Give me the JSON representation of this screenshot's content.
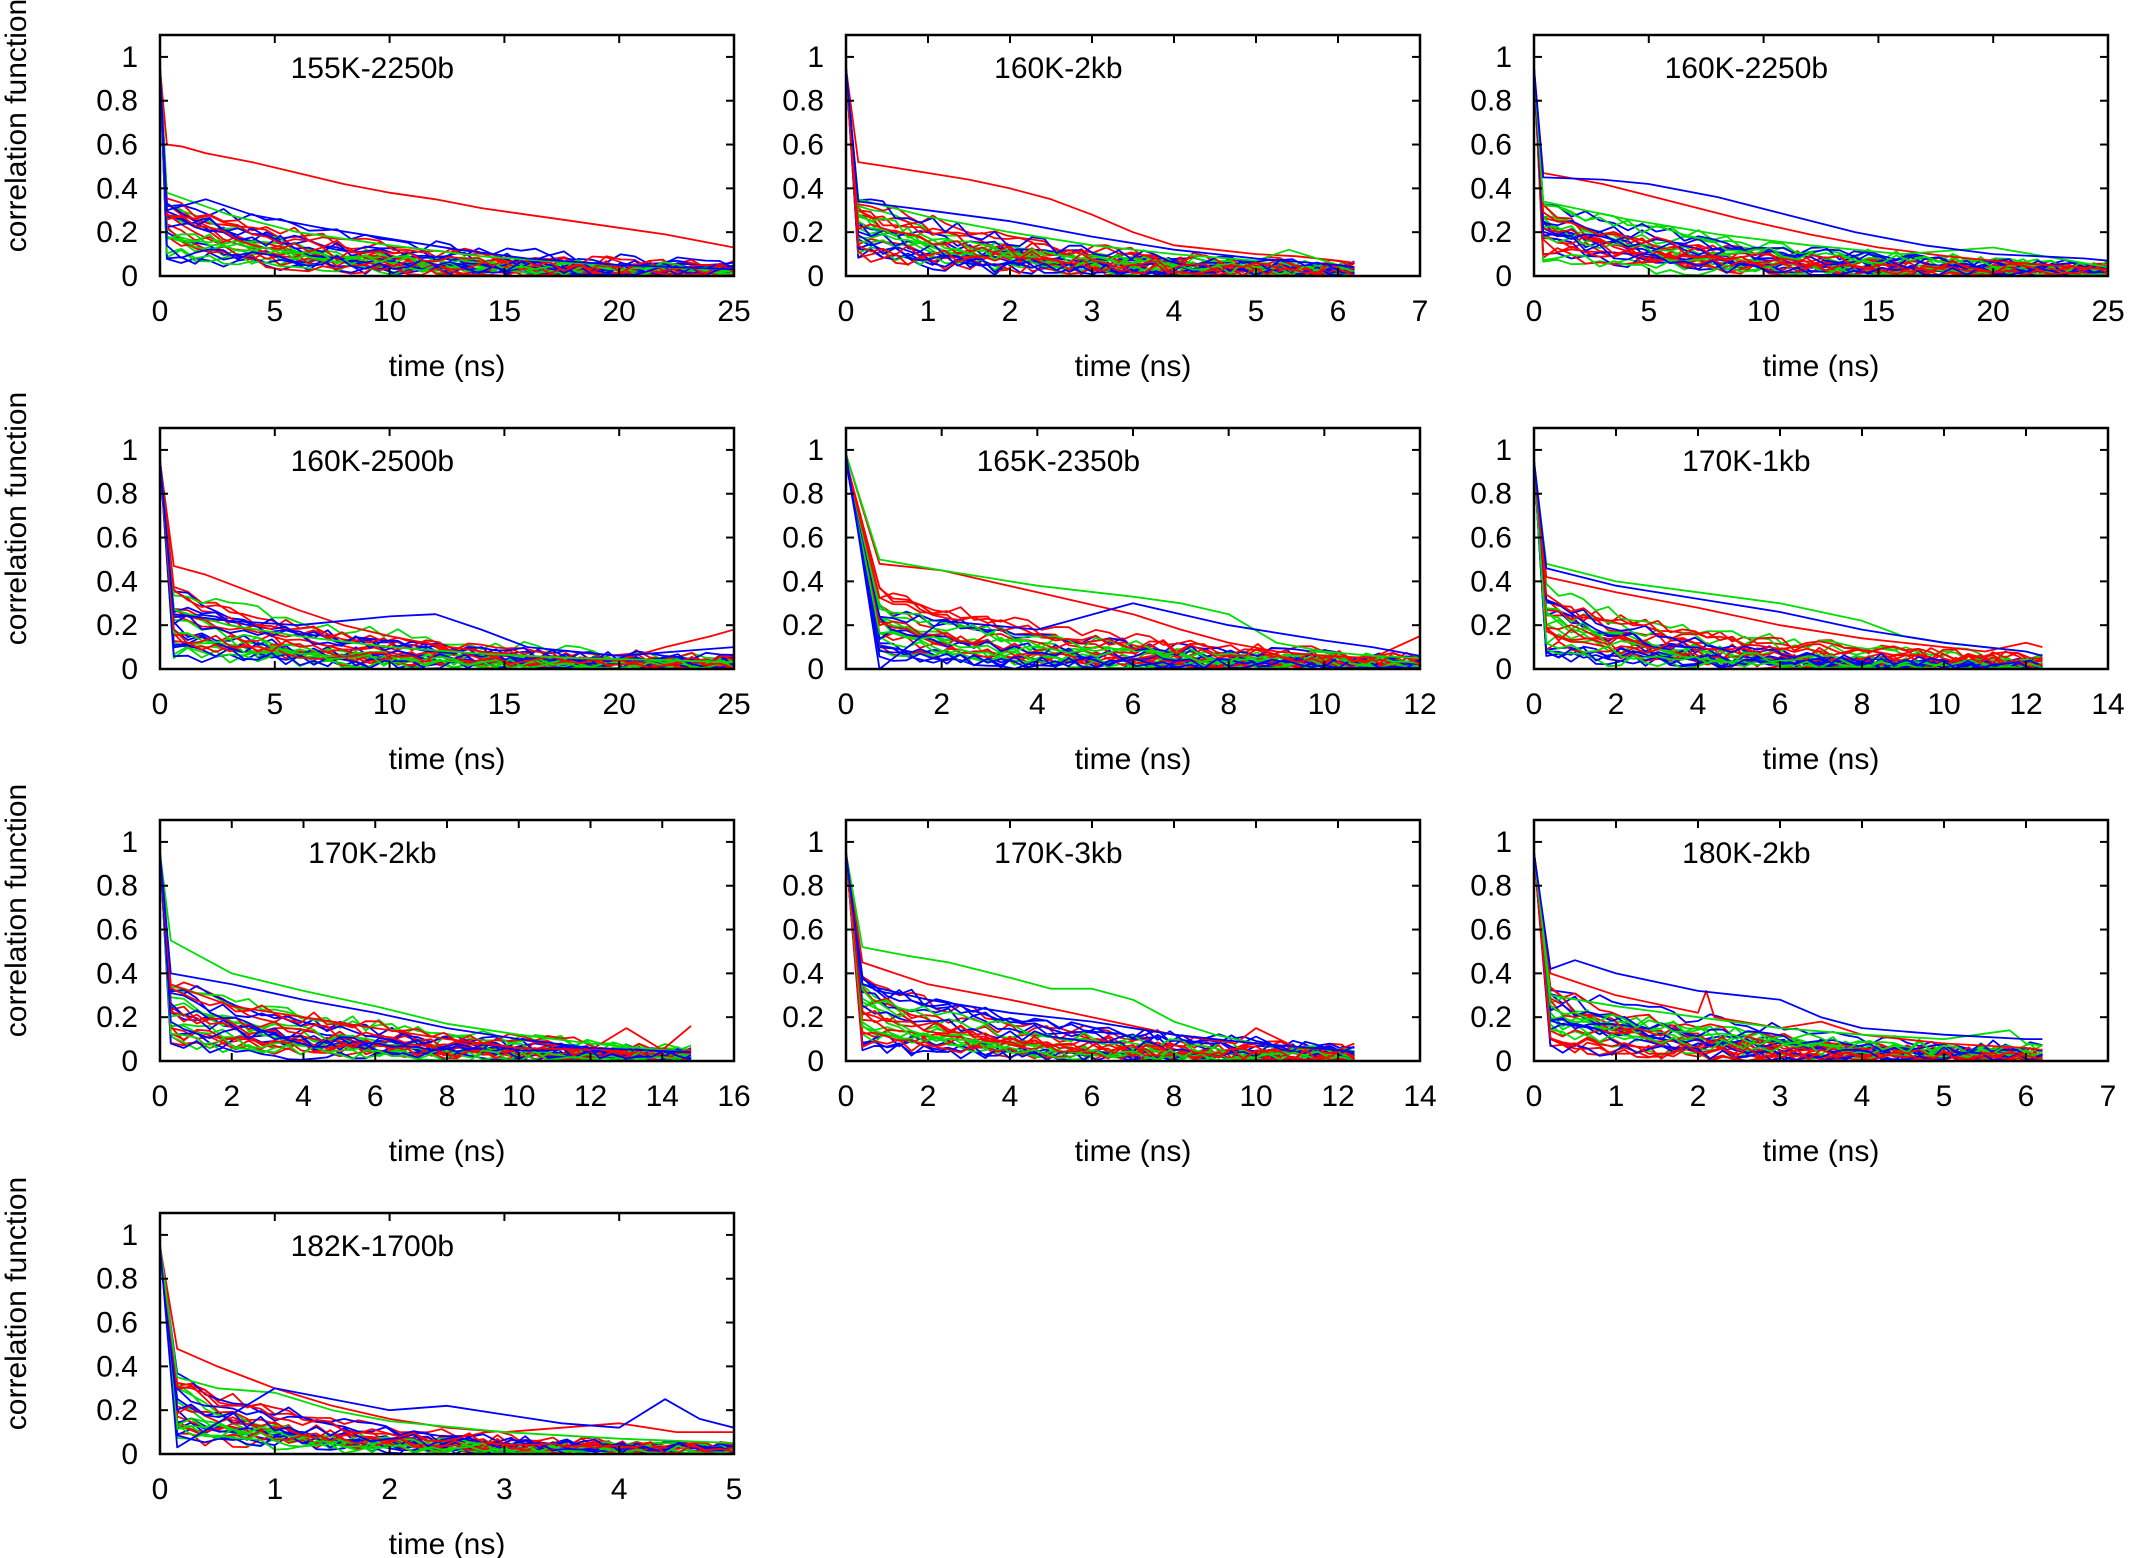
{
  "colors": {
    "red": "#ff0000",
    "green": "#00dd00",
    "blue": "#0000ff"
  },
  "chart_data": [
    {
      "type": "line",
      "title": "155K-2250b",
      "xlabel": "time (ns)",
      "ylabel": "correlation function",
      "xlim": [
        0,
        25
      ],
      "ylim": [
        0,
        1.1
      ],
      "xticks": [
        "0",
        "5",
        "10",
        "15",
        "20",
        "25"
      ],
      "yticks": [
        "0",
        "0.2",
        "0.4",
        "0.6",
        "0.8",
        "1"
      ],
      "series_colors": [
        "red",
        "green",
        "blue"
      ],
      "series": [
        {
          "color": "red",
          "x": [
            0,
            0.3,
            1,
            2,
            4,
            6,
            8,
            10,
            12,
            14,
            16,
            18,
            20,
            22,
            24,
            25
          ],
          "y": [
            0.95,
            0.6,
            0.59,
            0.56,
            0.52,
            0.47,
            0.42,
            0.38,
            0.35,
            0.31,
            0.28,
            0.25,
            0.22,
            0.19,
            0.15,
            0.13
          ]
        },
        {
          "color": "green",
          "x": [
            0,
            0.3,
            3,
            6,
            10,
            14,
            18,
            22,
            25
          ],
          "y": [
            0.95,
            0.38,
            0.28,
            0.2,
            0.14,
            0.09,
            0.06,
            0.04,
            0.03
          ]
        },
        {
          "color": "blue",
          "x": [
            0,
            0.3,
            2,
            4,
            7,
            10,
            13,
            16,
            20,
            25
          ],
          "y": [
            0.95,
            0.3,
            0.35,
            0.28,
            0.22,
            0.17,
            0.12,
            0.08,
            0.05,
            0.03
          ]
        }
      ]
    },
    {
      "type": "line",
      "title": "160K-2kb",
      "xlabel": "time (ns)",
      "ylabel": "correlation function",
      "xlim": [
        0,
        7
      ],
      "ylim": [
        0,
        1.1
      ],
      "xticks": [
        "0",
        "1",
        "2",
        "3",
        "4",
        "5",
        "6",
        "7"
      ],
      "yticks": [
        "0",
        "0.2",
        "0.4",
        "0.6",
        "0.8",
        "1"
      ],
      "series_colors": [
        "red",
        "green",
        "blue"
      ],
      "series": [
        {
          "color": "red",
          "x": [
            0,
            0.15,
            0.5,
            1,
            1.5,
            2,
            2.5,
            3,
            3.5,
            4,
            4.5,
            5,
            5.5,
            6,
            6.2
          ],
          "y": [
            0.95,
            0.52,
            0.5,
            0.47,
            0.44,
            0.4,
            0.35,
            0.28,
            0.2,
            0.14,
            0.12,
            0.1,
            0.09,
            0.07,
            0.06
          ]
        },
        {
          "color": "green",
          "x": [
            0,
            0.15,
            1,
            2,
            3,
            4,
            5,
            5.4,
            6,
            6.2
          ],
          "y": [
            0.95,
            0.35,
            0.27,
            0.2,
            0.14,
            0.1,
            0.07,
            0.12,
            0.05,
            0.04
          ]
        },
        {
          "color": "blue",
          "x": [
            0,
            0.15,
            1,
            2,
            3,
            4,
            5,
            6,
            6.2
          ],
          "y": [
            0.95,
            0.34,
            0.3,
            0.25,
            0.18,
            0.12,
            0.08,
            0.05,
            0.04
          ]
        }
      ]
    },
    {
      "type": "line",
      "title": "160K-2250b",
      "xlabel": "time (ns)",
      "ylabel": "correlation function",
      "xlim": [
        0,
        25
      ],
      "ylim": [
        0,
        1.1
      ],
      "xticks": [
        "0",
        "5",
        "10",
        "15",
        "20",
        "25"
      ],
      "yticks": [
        "0",
        "0.2",
        "0.4",
        "0.6",
        "0.8",
        "1"
      ],
      "series_colors": [
        "red",
        "green",
        "blue"
      ],
      "series": [
        {
          "color": "red",
          "x": [
            0,
            0.4,
            3,
            6,
            9,
            12,
            15,
            18,
            21,
            25
          ],
          "y": [
            0.95,
            0.47,
            0.42,
            0.34,
            0.26,
            0.19,
            0.13,
            0.09,
            0.06,
            0.03
          ]
        },
        {
          "color": "green",
          "x": [
            0,
            0.4,
            4,
            8,
            12,
            16,
            20,
            25
          ],
          "y": [
            0.95,
            0.34,
            0.26,
            0.19,
            0.14,
            0.1,
            0.13,
            0.04
          ]
        },
        {
          "color": "blue",
          "x": [
            0,
            0.4,
            3,
            5,
            8,
            11,
            14,
            17,
            20,
            24,
            25
          ],
          "y": [
            0.95,
            0.45,
            0.44,
            0.42,
            0.36,
            0.28,
            0.2,
            0.14,
            0.1,
            0.08,
            0.07
          ]
        }
      ]
    },
    {
      "type": "line",
      "title": "160K-2500b",
      "xlabel": "time (ns)",
      "ylabel": "correlation function",
      "xlim": [
        0,
        25
      ],
      "ylim": [
        0,
        1.1
      ],
      "xticks": [
        "0",
        "5",
        "10",
        "15",
        "20",
        "25"
      ],
      "yticks": [
        "0",
        "0.2",
        "0.4",
        "0.6",
        "0.8",
        "1"
      ],
      "series_colors": [
        "red",
        "green",
        "blue"
      ],
      "series": [
        {
          "color": "red",
          "x": [
            0,
            0.6,
            2,
            4,
            6,
            8,
            10,
            12,
            14,
            16,
            18,
            20,
            22,
            24,
            25
          ],
          "y": [
            0.95,
            0.47,
            0.43,
            0.35,
            0.27,
            0.2,
            0.15,
            0.11,
            0.08,
            0.06,
            0.05,
            0.04,
            0.1,
            0.15,
            0.18
          ]
        },
        {
          "color": "green",
          "x": [
            0,
            0.6,
            3,
            6,
            10,
            14,
            18,
            22,
            25
          ],
          "y": [
            0.95,
            0.27,
            0.2,
            0.15,
            0.1,
            0.07,
            0.05,
            0.04,
            0.03
          ]
        },
        {
          "color": "blue",
          "x": [
            0,
            0.6,
            3,
            6,
            8,
            10,
            12,
            14,
            16,
            20,
            25
          ],
          "y": [
            0.95,
            0.25,
            0.22,
            0.2,
            0.22,
            0.24,
            0.25,
            0.18,
            0.1,
            0.06,
            0.1
          ]
        }
      ]
    },
    {
      "type": "line",
      "title": "165K-2350b",
      "xlabel": "time (ns)",
      "ylabel": "correlation function",
      "xlim": [
        0,
        12
      ],
      "ylim": [
        0,
        1.1
      ],
      "xticks": [
        "0",
        "2",
        "4",
        "6",
        "8",
        "10",
        "12"
      ],
      "yticks": [
        "0",
        "0.2",
        "0.4",
        "0.6",
        "0.8",
        "1"
      ],
      "series_colors": [
        "red",
        "green",
        "blue"
      ],
      "series": [
        {
          "color": "red",
          "x": [
            0,
            0.7,
            2,
            3,
            4,
            5,
            6,
            7,
            8,
            9,
            10,
            11,
            12
          ],
          "y": [
            0.98,
            0.48,
            0.45,
            0.4,
            0.35,
            0.3,
            0.25,
            0.18,
            0.12,
            0.08,
            0.06,
            0.05,
            0.15
          ]
        },
        {
          "color": "green",
          "x": [
            0,
            0.7,
            2,
            4,
            6,
            7,
            8,
            9,
            10,
            11,
            12
          ],
          "y": [
            0.98,
            0.5,
            0.45,
            0.38,
            0.33,
            0.3,
            0.25,
            0.12,
            0.08,
            0.06,
            0.05
          ]
        },
        {
          "color": "blue",
          "x": [
            0,
            0.7,
            2,
            4,
            6,
            8,
            10,
            11,
            12
          ],
          "y": [
            0.98,
            0.0,
            0.22,
            0.18,
            0.3,
            0.2,
            0.13,
            0.1,
            0.06
          ]
        }
      ]
    },
    {
      "type": "line",
      "title": "170K-1kb",
      "xlabel": "time (ns)",
      "ylabel": "correlation function",
      "xlim": [
        0,
        14
      ],
      "ylim": [
        0,
        1.1
      ],
      "xticks": [
        "0",
        "2",
        "4",
        "6",
        "8",
        "10",
        "12",
        "14"
      ],
      "yticks": [
        "0",
        "0.2",
        "0.4",
        "0.6",
        "0.8",
        "1"
      ],
      "series_colors": [
        "red",
        "green",
        "blue"
      ],
      "series": [
        {
          "color": "red",
          "x": [
            0,
            0.3,
            2,
            4,
            6,
            8,
            10,
            11,
            12,
            12.4
          ],
          "y": [
            0.95,
            0.42,
            0.35,
            0.28,
            0.2,
            0.14,
            0.1,
            0.08,
            0.12,
            0.1
          ]
        },
        {
          "color": "green",
          "x": [
            0,
            0.3,
            2,
            4,
            6,
            8,
            9,
            10,
            12,
            12.4
          ],
          "y": [
            0.95,
            0.48,
            0.4,
            0.35,
            0.3,
            0.22,
            0.15,
            0.12,
            0.08,
            0.06
          ]
        },
        {
          "color": "blue",
          "x": [
            0,
            0.3,
            2,
            4,
            6,
            8,
            10,
            12,
            12.4
          ],
          "y": [
            0.95,
            0.46,
            0.38,
            0.32,
            0.26,
            0.18,
            0.12,
            0.08,
            0.06
          ]
        }
      ]
    },
    {
      "type": "line",
      "title": "170K-2kb",
      "xlabel": "time (ns)",
      "ylabel": "correlation function",
      "xlim": [
        0,
        16
      ],
      "ylim": [
        0,
        1.1
      ],
      "xticks": [
        "0",
        "2",
        "4",
        "6",
        "8",
        "10",
        "12",
        "14",
        "16"
      ],
      "yticks": [
        "0",
        "0.2",
        "0.4",
        "0.6",
        "0.8",
        "1"
      ],
      "series_colors": [
        "red",
        "green",
        "blue"
      ],
      "series": [
        {
          "color": "red",
          "x": [
            0,
            0.3,
            2,
            4,
            6,
            8,
            10,
            12,
            13,
            14,
            14.8
          ],
          "y": [
            0.95,
            0.35,
            0.25,
            0.2,
            0.15,
            0.1,
            0.06,
            0.05,
            0.15,
            0.05,
            0.16
          ]
        },
        {
          "color": "green",
          "x": [
            0,
            0.3,
            2,
            4,
            6,
            8,
            10,
            12,
            14,
            14.8
          ],
          "y": [
            0.95,
            0.55,
            0.4,
            0.32,
            0.25,
            0.17,
            0.12,
            0.08,
            0.05,
            0.04
          ]
        },
        {
          "color": "blue",
          "x": [
            0,
            0.3,
            2,
            4,
            6,
            8,
            10,
            12,
            14.8
          ],
          "y": [
            0.95,
            0.4,
            0.35,
            0.28,
            0.22,
            0.15,
            0.1,
            0.06,
            0.04
          ]
        }
      ]
    },
    {
      "type": "line",
      "title": "170K-3kb",
      "xlabel": "time (ns)",
      "ylabel": "correlation function",
      "xlim": [
        0,
        14
      ],
      "ylim": [
        0,
        1.1
      ],
      "xticks": [
        "0",
        "2",
        "4",
        "6",
        "8",
        "10",
        "12",
        "14"
      ],
      "yticks": [
        "0",
        "0.2",
        "0.4",
        "0.6",
        "0.8",
        "1"
      ],
      "series_colors": [
        "red",
        "green",
        "blue"
      ],
      "series": [
        {
          "color": "red",
          "x": [
            0,
            0.4,
            2,
            4,
            6,
            8,
            9.5,
            10,
            11,
            12,
            12.4
          ],
          "y": [
            0.95,
            0.45,
            0.35,
            0.28,
            0.2,
            0.12,
            0.08,
            0.15,
            0.06,
            0.05,
            0.08
          ]
        },
        {
          "color": "green",
          "x": [
            0,
            0.4,
            1.5,
            2.5,
            4,
            5,
            6,
            7,
            8,
            9,
            10,
            12,
            12.4
          ],
          "y": [
            0.95,
            0.52,
            0.48,
            0.45,
            0.38,
            0.33,
            0.33,
            0.28,
            0.18,
            0.12,
            0.08,
            0.05,
            0.04
          ]
        },
        {
          "color": "blue",
          "x": [
            0,
            0.4,
            2,
            4,
            6,
            8,
            10,
            12,
            12.4
          ],
          "y": [
            0.95,
            0.35,
            0.28,
            0.22,
            0.18,
            0.12,
            0.08,
            0.05,
            0.04
          ]
        }
      ]
    },
    {
      "type": "line",
      "title": "180K-2kb",
      "xlabel": "time (ns)",
      "ylabel": "correlation function",
      "xlim": [
        0,
        7
      ],
      "ylim": [
        0,
        1.1
      ],
      "xticks": [
        "0",
        "1",
        "2",
        "3",
        "4",
        "5",
        "6",
        "7"
      ],
      "yticks": [
        "0",
        "0.2",
        "0.4",
        "0.6",
        "0.8",
        "1"
      ],
      "series_colors": [
        "red",
        "green",
        "blue"
      ],
      "series": [
        {
          "color": "red",
          "x": [
            0,
            0.2,
            1,
            2,
            2.1,
            2.2,
            3,
            3.5,
            4,
            5,
            6,
            6.2
          ],
          "y": [
            0.95,
            0.4,
            0.3,
            0.22,
            0.32,
            0.2,
            0.15,
            0.18,
            0.12,
            0.08,
            0.06,
            0.05
          ]
        },
        {
          "color": "green",
          "x": [
            0,
            0.2,
            1,
            2,
            3,
            4,
            5,
            5.8,
            6,
            6.2
          ],
          "y": [
            0.95,
            0.3,
            0.25,
            0.2,
            0.15,
            0.12,
            0.1,
            0.14,
            0.08,
            0.07
          ]
        },
        {
          "color": "blue",
          "x": [
            0,
            0.2,
            0.5,
            1,
            1.5,
            2,
            2.5,
            3,
            3.5,
            4,
            5,
            6,
            6.2
          ],
          "y": [
            0.95,
            0.42,
            0.46,
            0.4,
            0.36,
            0.32,
            0.3,
            0.28,
            0.2,
            0.15,
            0.12,
            0.1,
            0.1
          ]
        }
      ]
    },
    {
      "type": "line",
      "title": "182K-1700b",
      "xlabel": "time (ns)",
      "ylabel": "correlation function",
      "xlim": [
        0,
        5
      ],
      "ylim": [
        0,
        1.1
      ],
      "xticks": [
        "0",
        "1",
        "2",
        "3",
        "4",
        "5"
      ],
      "yticks": [
        "0",
        "0.2",
        "0.4",
        "0.6",
        "0.8",
        "1"
      ],
      "series_colors": [
        "red",
        "green",
        "blue"
      ],
      "series": [
        {
          "color": "red",
          "x": [
            0,
            0.15,
            0.5,
            1,
            1.5,
            2,
            2.5,
            3,
            3.5,
            4,
            4.5,
            5
          ],
          "y": [
            0.95,
            0.48,
            0.4,
            0.3,
            0.22,
            0.16,
            0.12,
            0.1,
            0.12,
            0.14,
            0.1,
            0.1
          ]
        },
        {
          "color": "green",
          "x": [
            0,
            0.15,
            0.5,
            1,
            1.5,
            2,
            3,
            4,
            5
          ],
          "y": [
            0.95,
            0.35,
            0.3,
            0.28,
            0.2,
            0.15,
            0.1,
            0.07,
            0.05
          ]
        },
        {
          "color": "blue",
          "x": [
            0,
            0.15,
            1,
            1.5,
            2,
            2.5,
            3,
            3.5,
            4,
            4.4,
            4.7,
            5
          ],
          "y": [
            0.95,
            0.03,
            0.3,
            0.25,
            0.2,
            0.22,
            0.18,
            0.14,
            0.12,
            0.25,
            0.16,
            0.12
          ]
        }
      ]
    }
  ]
}
